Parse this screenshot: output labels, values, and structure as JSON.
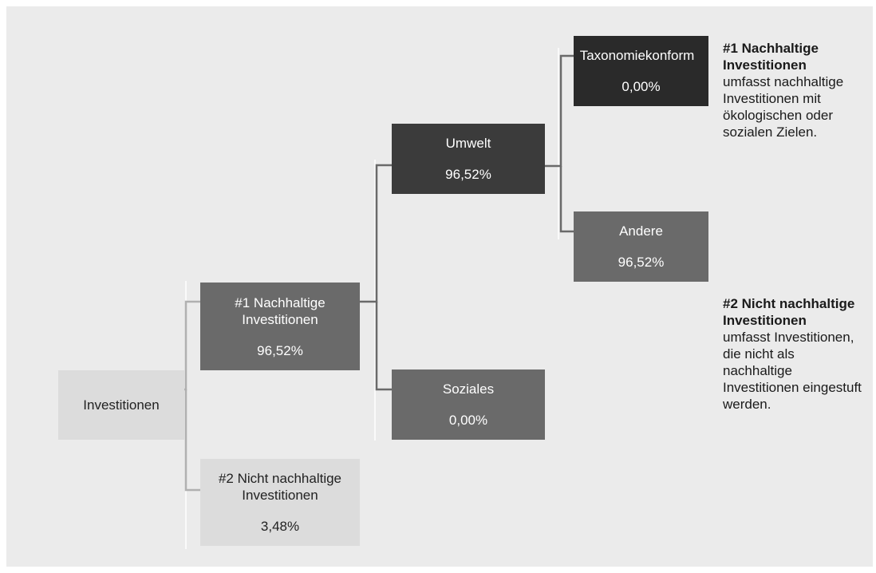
{
  "nodes": {
    "investitionen": {
      "label": "Investitionen"
    },
    "nachhaltige": {
      "label": "#1 Nachhaltige Investitionen",
      "value": "96,52%"
    },
    "nicht_nachhaltige": {
      "label": "#2 Nicht nachhaltige Investitionen",
      "value": "3,48%"
    },
    "umwelt": {
      "label": "Umwelt",
      "value": "96,52%"
    },
    "soziales": {
      "label": "Soziales",
      "value": "0,00%"
    },
    "taxonomiekonform": {
      "label": "Taxonomiekonform",
      "value": "0,00%"
    },
    "andere": {
      "label": "Andere",
      "value": "96,52%"
    }
  },
  "notes": {
    "note1": {
      "title": "#1 Nachhaltige Investitionen",
      "text": "umfasst nachhaltige Investitionen mit ökologischen oder sozialen Zielen."
    },
    "note2": {
      "title": "#2 Nicht nachhaltige Investitionen",
      "text": "umfasst Investitionen, die nicht als nachhaltige Investitionen eingestuft werden."
    }
  },
  "colors": {
    "background": "#ebebeb",
    "light_box": "#dcdcdc",
    "mid_box": "#6a6a6a",
    "dark_box": "#3b3b3b",
    "darkest_box": "#2a2a2a",
    "line_light": "#b0b0b0",
    "line_dark": "#6a6a6a"
  }
}
